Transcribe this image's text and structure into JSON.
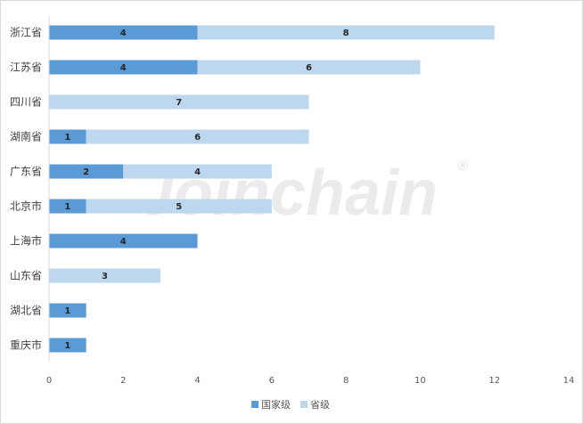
{
  "watermark": {
    "text": "Joinchain",
    "mark": "®"
  },
  "chart_data": {
    "type": "bar",
    "orientation": "horizontal",
    "stacked": true,
    "categories": [
      "浙江省",
      "江苏省",
      "四川省",
      "湖南省",
      "广东省",
      "北京市",
      "上海市",
      "山东省",
      "湖北省",
      "重庆市"
    ],
    "series": [
      {
        "name": "国家级",
        "color": "#5b9bd5",
        "values": [
          4,
          4,
          0,
          1,
          2,
          1,
          4,
          0,
          1,
          1
        ]
      },
      {
        "name": "省级",
        "color": "#bdd7ee",
        "values": [
          8,
          6,
          7,
          6,
          4,
          5,
          0,
          3,
          0,
          0
        ]
      }
    ],
    "xlim": [
      0,
      14
    ],
    "xticks": [
      "0",
      "2",
      "4",
      "6",
      "8",
      "10",
      "12",
      "14"
    ],
    "grid": false,
    "legend_position": "bottom"
  }
}
